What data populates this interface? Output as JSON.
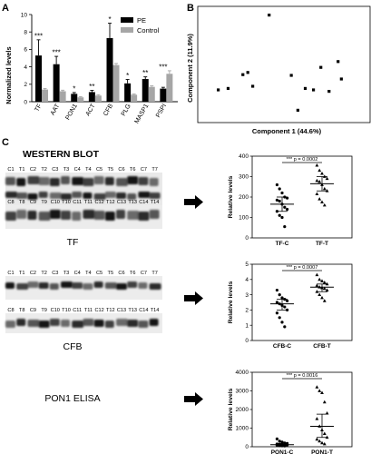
{
  "panel_labels": {
    "a": "A",
    "b": "B",
    "c": "C"
  },
  "chart_data": [
    {
      "type": "bar",
      "ylabel": "Normalized levels",
      "ylim": [
        0,
        10
      ],
      "yticks": [
        "0",
        "2",
        "4",
        "6",
        "8",
        "10"
      ],
      "categories": [
        "TF",
        "AAT",
        "PON1",
        "ACT",
        "CFB",
        "PLG",
        "MASP1",
        "PSPI"
      ],
      "series": [
        {
          "name": "PE",
          "color": "#000000",
          "values": [
            5.3,
            4.3,
            0.9,
            1.1,
            7.3,
            2.1,
            2.6,
            1.5
          ],
          "errors": [
            1.8,
            0.9,
            0.15,
            0.2,
            1.7,
            0.45,
            0.25,
            0.15
          ]
        },
        {
          "name": "Control",
          "color": "#a6a6a6",
          "values": [
            1.4,
            1.2,
            0.5,
            0.7,
            4.2,
            0.8,
            1.7,
            3.2
          ],
          "errors": [
            0.12,
            0.12,
            0.08,
            0.1,
            0.18,
            0.08,
            0.12,
            0.35
          ]
        }
      ],
      "significance": [
        "***",
        "***",
        "*",
        "**",
        "*",
        "*",
        "**",
        "***"
      ],
      "legend": "top-right"
    },
    {
      "type": "scatter",
      "xlabel": "Component 1 (44.6%)",
      "ylabel": "Component 2 (11.9%)",
      "x": [
        -9.5,
        -8.3,
        -6.5,
        -5.9,
        -5.3,
        -3.3,
        -0.6,
        0.2,
        1.1,
        2.1,
        3.0,
        4.0,
        5.1,
        5.5
      ],
      "y": [
        0.5,
        0.7,
        2.6,
        2.9,
        1.0,
        10.8,
        2.5,
        -2.3,
        0.7,
        0.5,
        3.6,
        0.3,
        4.4,
        2.0
      ],
      "xlim": [
        -12,
        9
      ],
      "ylim": [
        -4,
        12
      ]
    },
    {
      "type": "scatter",
      "ylabel": "Relative levels",
      "categories": [
        "TF-C",
        "TF-T"
      ],
      "yticks": [
        "0",
        "100",
        "200",
        "300",
        "400"
      ],
      "ylim": [
        0,
        400
      ],
      "groups": [
        {
          "values": [
            260,
            240,
            220,
            200,
            195,
            185,
            180,
            165,
            150,
            140,
            130,
            110,
            100,
            55
          ],
          "mean": 165,
          "sem_low": 130,
          "sem_high": 200
        },
        {
          "values": [
            355,
            330,
            315,
            300,
            290,
            280,
            275,
            260,
            240,
            230,
            215,
            190,
            175,
            160
          ],
          "mean": 265,
          "sem_low": 230,
          "sem_high": 300
        }
      ],
      "p_text": "*** p = 0.0002"
    },
    {
      "type": "scatter",
      "ylabel": "Relative levels",
      "categories": [
        "CFB-C",
        "CFB-T"
      ],
      "yticks": [
        "0",
        "1",
        "2",
        "3",
        "4",
        "5"
      ],
      "ylim": [
        0,
        5
      ],
      "groups": [
        {
          "values": [
            3.3,
            3.0,
            2.8,
            2.7,
            2.6,
            2.5,
            2.4,
            2.3,
            2.2,
            2.0,
            1.8,
            1.5,
            1.2,
            0.9
          ],
          "mean": 2.4,
          "sem_low": 2.0,
          "sem_high": 2.7
        },
        {
          "values": [
            4.3,
            4.0,
            3.9,
            3.8,
            3.7,
            3.6,
            3.5,
            3.45,
            3.4,
            3.3,
            3.2,
            3.0,
            2.8,
            2.6
          ],
          "mean": 3.5,
          "sem_low": 3.2,
          "sem_high": 3.7
        }
      ],
      "p_text": "*** p = 0.0007"
    },
    {
      "type": "scatter",
      "ylabel": "Relative levels",
      "categories": [
        "PON1-C",
        "PON1-T"
      ],
      "yticks": [
        "0",
        "1000",
        "2000",
        "3000",
        "4000"
      ],
      "ylim": [
        0,
        4000
      ],
      "groups": [
        {
          "values": [
            420,
            300,
            250,
            200,
            180,
            150,
            130,
            110,
            100,
            90,
            80,
            60,
            50,
            40
          ],
          "mean": 110,
          "sem_low": 40,
          "sem_high": 180
        },
        {
          "values": [
            3200,
            3000,
            2900,
            2400,
            1800,
            1500,
            1100,
            900,
            700,
            500,
            400,
            300,
            200,
            150
          ],
          "mean": 1100,
          "sem_low": 500,
          "sem_high": 1750
        }
      ],
      "p_text": "*** p = 0.0016"
    }
  ],
  "blot": {
    "title": "WESTERN BLOT",
    "tf_label": "TF",
    "cfb_label": "CFB",
    "pon1_label": "PON1 ELISA",
    "lanes_row1": [
      "C1",
      "T1",
      "C2",
      "T2",
      "C3",
      "T3",
      "C4",
      "T4",
      "C5",
      "T5",
      "C6",
      "T6",
      "C7",
      "T7"
    ],
    "lanes_row2": [
      "C8",
      "T8",
      "C9",
      "T9",
      "C10",
      "T10",
      "C11",
      "T11",
      "C12",
      "T12",
      "C13",
      "T13",
      "C14",
      "T14"
    ]
  }
}
